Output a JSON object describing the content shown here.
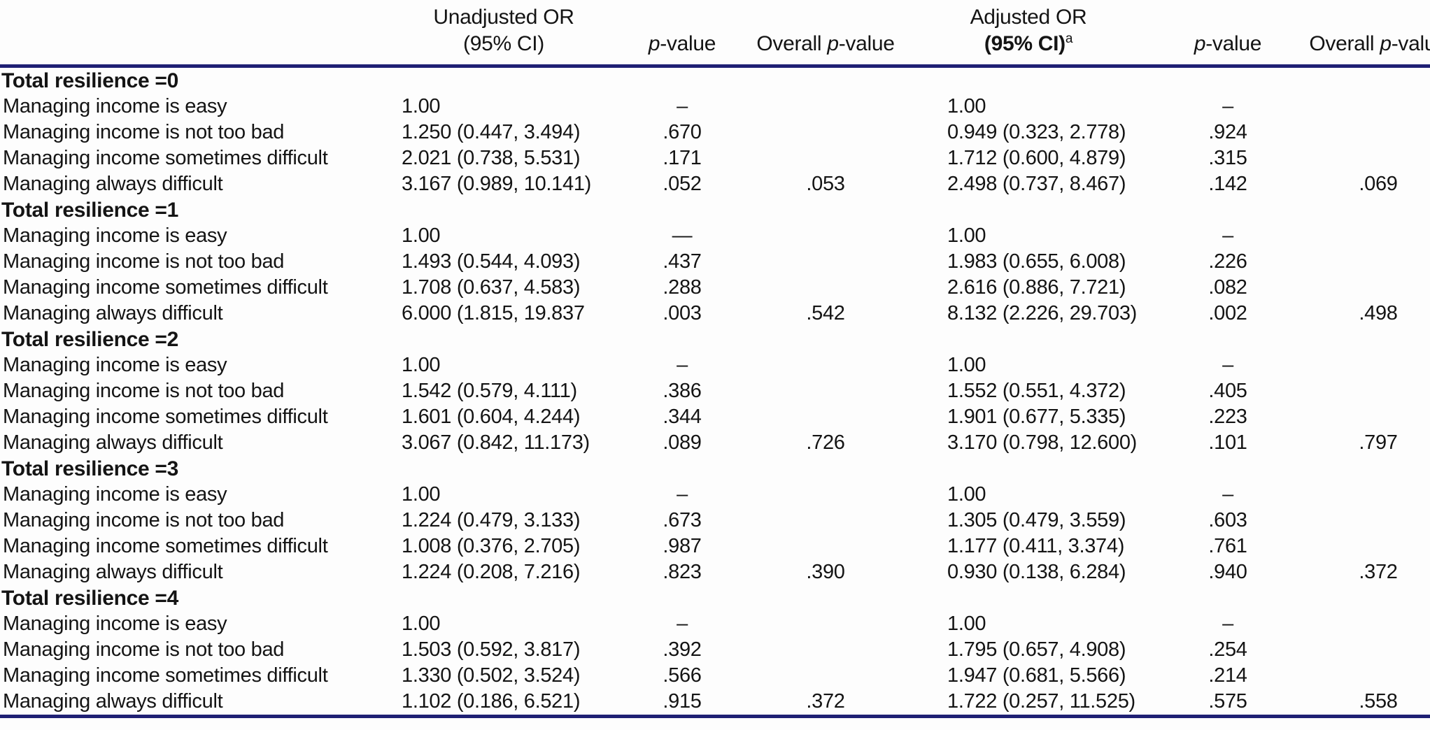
{
  "page": {
    "background": "#fdfdfd",
    "rule_color": "#1f2074",
    "text_color": "#141414"
  },
  "header": {
    "unadjusted": {
      "line1": "Unadjusted OR",
      "line2": "(95% CI)"
    },
    "adjusted": {
      "line1": "Adjusted OR",
      "line2": "(95% CI)",
      "superscript": "a"
    },
    "p_value": {
      "p": "p",
      "suffix": "-value"
    },
    "overall_p_value": {
      "prefix": "Overall ",
      "p": "p",
      "suffix": "-value"
    }
  },
  "table": {
    "column_keys": [
      "label",
      "u_or",
      "u_p",
      "u_overall",
      "a_or",
      "a_p",
      "a_overall"
    ],
    "sections": [
      {
        "title": "Total resilience =0",
        "rows": [
          {
            "label": "Managing income is easy",
            "u_or": "1.00",
            "u_p": "–",
            "u_overall": "",
            "a_or": "1.00",
            "a_p": "–",
            "a_overall": ""
          },
          {
            "label": "Managing income is not too bad",
            "u_or": "1.250 (0.447, 3.494)",
            "u_p": ".670",
            "u_overall": "",
            "a_or": "0.949 (0.323, 2.778)",
            "a_p": ".924",
            "a_overall": ""
          },
          {
            "label": "Managing income sometimes difficult",
            "u_or": "2.021 (0.738, 5.531)",
            "u_p": ".171",
            "u_overall": "",
            "a_or": "1.712 (0.600, 4.879)",
            "a_p": ".315",
            "a_overall": ""
          },
          {
            "label": "Managing always difficult",
            "u_or": "3.167 (0.989, 10.141)",
            "u_p": ".052",
            "u_overall": ".053",
            "a_or": "2.498 (0.737, 8.467)",
            "a_p": ".142",
            "a_overall": ".069"
          }
        ]
      },
      {
        "title": "Total resilience =1",
        "rows": [
          {
            "label": "Managing income is easy",
            "u_or": "1.00",
            "u_p": "—",
            "u_overall": "",
            "a_or": "1.00",
            "a_p": "–",
            "a_overall": ""
          },
          {
            "label": "Managing income is not too bad",
            "u_or": "1.493 (0.544, 4.093)",
            "u_p": ".437",
            "u_overall": "",
            "a_or": "1.983 (0.655, 6.008)",
            "a_p": ".226",
            "a_overall": ""
          },
          {
            "label": "Managing income sometimes difficult",
            "u_or": "1.708 (0.637, 4.583)",
            "u_p": ".288",
            "u_overall": "",
            "a_or": "2.616 (0.886, 7.721)",
            "a_p": ".082",
            "a_overall": ""
          },
          {
            "label": "Managing always difficult",
            "u_or": "6.000 (1.815, 19.837",
            "u_p": ".003",
            "u_overall": ".542",
            "a_or": "8.132 (2.226, 29.703)",
            "a_p": ".002",
            "a_overall": ".498"
          }
        ]
      },
      {
        "title": "Total resilience =2",
        "rows": [
          {
            "label": "Managing income is easy",
            "u_or": "1.00",
            "u_p": "–",
            "u_overall": "",
            "a_or": "1.00",
            "a_p": "–",
            "a_overall": ""
          },
          {
            "label": "Managing income is not too bad",
            "u_or": "1.542 (0.579, 4.111)",
            "u_p": ".386",
            "u_overall": "",
            "a_or": "1.552 (0.551, 4.372)",
            "a_p": ".405",
            "a_overall": ""
          },
          {
            "label": "Managing income sometimes difficult",
            "u_or": "1.601 (0.604, 4.244)",
            "u_p": ".344",
            "u_overall": "",
            "a_or": "1.901 (0.677, 5.335)",
            "a_p": ".223",
            "a_overall": ""
          },
          {
            "label": "Managing always difficult",
            "u_or": "3.067 (0.842, 11.173)",
            "u_p": ".089",
            "u_overall": ".726",
            "a_or": "3.170 (0.798, 12.600)",
            "a_p": ".101",
            "a_overall": ".797"
          }
        ]
      },
      {
        "title": "Total resilience =3",
        "rows": [
          {
            "label": "Managing income is easy",
            "u_or": "1.00",
            "u_p": "–",
            "u_overall": "",
            "a_or": "1.00",
            "a_p": "–",
            "a_overall": ""
          },
          {
            "label": "Managing income is not too bad",
            "u_or": "1.224 (0.479, 3.133)",
            "u_p": ".673",
            "u_overall": "",
            "a_or": "1.305 (0.479, 3.559)",
            "a_p": ".603",
            "a_overall": ""
          },
          {
            "label": "Managing income sometimes difficult",
            "u_or": "1.008 (0.376, 2.705)",
            "u_p": ".987",
            "u_overall": "",
            "a_or": "1.177 (0.411, 3.374)",
            "a_p": ".761",
            "a_overall": ""
          },
          {
            "label": "Managing always difficult",
            "u_or": "1.224 (0.208, 7.216)",
            "u_p": ".823",
            "u_overall": ".390",
            "a_or": "0.930 (0.138, 6.284)",
            "a_p": ".940",
            "a_overall": ".372"
          }
        ]
      },
      {
        "title": "Total resilience =4",
        "rows": [
          {
            "label": "Managing income is easy",
            "u_or": "1.00",
            "u_p": "–",
            "u_overall": "",
            "a_or": "1.00",
            "a_p": "–",
            "a_overall": ""
          },
          {
            "label": "Managing income is not too bad",
            "u_or": "1.503 (0.592, 3.817)",
            "u_p": ".392",
            "u_overall": "",
            "a_or": "1.795 (0.657, 4.908)",
            "a_p": ".254",
            "a_overall": ""
          },
          {
            "label": "Managing income sometimes difficult",
            "u_or": "1.330 (0.502, 3.524)",
            "u_p": ".566",
            "u_overall": "",
            "a_or": "1.947 (0.681, 5.566)",
            "a_p": ".214",
            "a_overall": ""
          },
          {
            "label": "Managing always difficult",
            "u_or": "1.102 (0.186, 6.521)",
            "u_p": ".915",
            "u_overall": ".372",
            "a_or": "1.722 (0.257, 11.525)",
            "a_p": ".575",
            "a_overall": ".558"
          }
        ]
      }
    ]
  }
}
